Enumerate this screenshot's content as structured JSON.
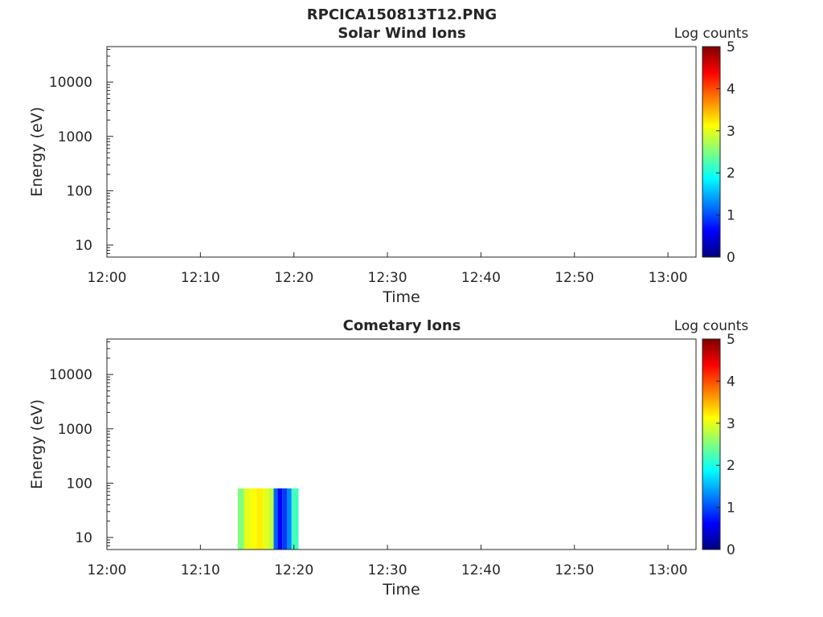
{
  "figure": {
    "title": "RPCICA150813T12.PNG"
  },
  "colorscale": {
    "stops": [
      "#00007f",
      "#0000ff",
      "#007fff",
      "#00ffff",
      "#7fff7f",
      "#ffff00",
      "#ff7f00",
      "#ff0000",
      "#7f0000"
    ]
  },
  "chart_data": [
    {
      "type": "heatmap",
      "title": "Solar Wind Ions",
      "xlabel": "Time",
      "ylabel": "Energy (eV)",
      "x_ticks": [
        "12:00",
        "12:10",
        "12:20",
        "12:30",
        "12:40",
        "12:50",
        "13:00"
      ],
      "xlim": [
        "12:00",
        "13:03"
      ],
      "y_scale": "log",
      "y_ticks": [
        10,
        100,
        1000,
        10000
      ],
      "ylim": [
        6,
        45000
      ],
      "colorbar": {
        "label": "Log counts",
        "ticks": [
          0,
          1,
          2,
          3,
          4,
          5
        ],
        "range": [
          0,
          5
        ]
      },
      "data": []
    },
    {
      "type": "heatmap",
      "title": "Cometary Ions",
      "xlabel": "Time",
      "ylabel": "Energy (eV)",
      "x_ticks": [
        "12:00",
        "12:10",
        "12:20",
        "12:30",
        "12:40",
        "12:50",
        "13:00"
      ],
      "xlim": [
        "12:00",
        "13:03"
      ],
      "y_scale": "log",
      "y_ticks": [
        10,
        100,
        1000,
        10000
      ],
      "ylim": [
        6,
        45000
      ],
      "colorbar": {
        "label": "Log counts",
        "ticks": [
          0,
          1,
          2,
          3,
          4,
          5
        ],
        "range": [
          0,
          5
        ]
      },
      "data": [
        {
          "t_start": "12:14:00",
          "t_end": "12:14:40",
          "e_min": 6,
          "e_max": 80,
          "log_counts": 2.5
        },
        {
          "t_start": "12:14:40",
          "t_end": "12:15:20",
          "e_min": 6,
          "e_max": 80,
          "log_counts": 3.0
        },
        {
          "t_start": "12:15:20",
          "t_end": "12:16:00",
          "e_min": 6,
          "e_max": 80,
          "log_counts": 3.1
        },
        {
          "t_start": "12:16:00",
          "t_end": "12:16:40",
          "e_min": 6,
          "e_max": 80,
          "log_counts": 3.2
        },
        {
          "t_start": "12:16:40",
          "t_end": "12:17:20",
          "e_min": 6,
          "e_max": 80,
          "log_counts": 3.0
        },
        {
          "t_start": "12:17:20",
          "t_end": "12:17:50",
          "e_min": 6,
          "e_max": 80,
          "log_counts": 2.8
        },
        {
          "t_start": "12:17:50",
          "t_end": "12:18:15",
          "e_min": 6,
          "e_max": 80,
          "log_counts": 1.1
        },
        {
          "t_start": "12:18:15",
          "t_end": "12:18:45",
          "e_min": 6,
          "e_max": 80,
          "log_counts": 0.6
        },
        {
          "t_start": "12:18:45",
          "t_end": "12:19:15",
          "e_min": 6,
          "e_max": 80,
          "log_counts": 0.9
        },
        {
          "t_start": "12:19:15",
          "t_end": "12:19:45",
          "e_min": 6,
          "e_max": 80,
          "log_counts": 1.3
        },
        {
          "t_start": "12:19:45",
          "t_end": "12:20:30",
          "e_min": 6,
          "e_max": 80,
          "log_counts": 2.2
        }
      ]
    }
  ]
}
